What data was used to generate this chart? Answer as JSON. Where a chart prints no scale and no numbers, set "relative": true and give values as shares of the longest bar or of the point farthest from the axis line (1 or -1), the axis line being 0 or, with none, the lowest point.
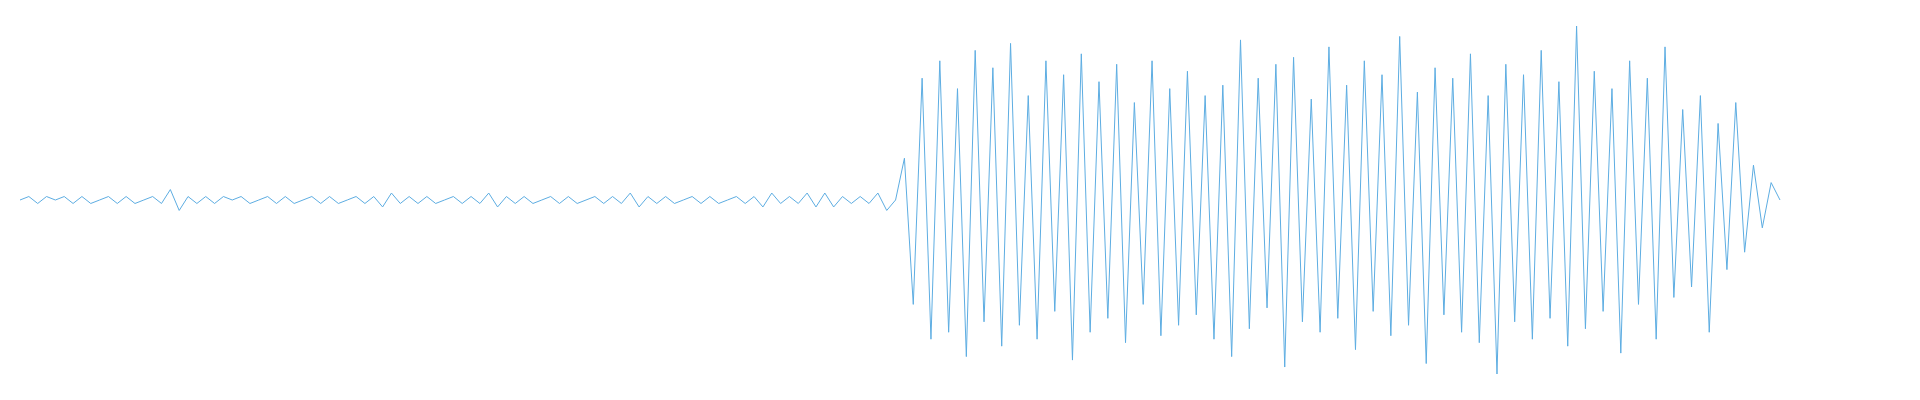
{
  "chart_data": {
    "type": "line",
    "relative": true,
    "categories": [
      null,
      null,
      null,
      null,
      null,
      null,
      null,
      null,
      null,
      null,
      null,
      null,
      null,
      null,
      null,
      null,
      null,
      null,
      null,
      null,
      null,
      null,
      null,
      null,
      null,
      null,
      null,
      null,
      null,
      null,
      null,
      null,
      null,
      null,
      null,
      null,
      null,
      null,
      null,
      null,
      null,
      null,
      null,
      null,
      null,
      null,
      null,
      null,
      null,
      null,
      null,
      null,
      null,
      null,
      null,
      null,
      null,
      null,
      null,
      null,
      null,
      null,
      null,
      null,
      null,
      null,
      null,
      null,
      null,
      null,
      null,
      null,
      null,
      null,
      null,
      null,
      null,
      null,
      null,
      null,
      null,
      null,
      null,
      null,
      null,
      null,
      null,
      null,
      null,
      null,
      null,
      null,
      null,
      null,
      null,
      null,
      null,
      null,
      null,
      null,
      null,
      null,
      null,
      null,
      null,
      null,
      null,
      null,
      null,
      null,
      null,
      null,
      null,
      null,
      null,
      null,
      null,
      null,
      null,
      null,
      null,
      null,
      null,
      null,
      null,
      null,
      null,
      null,
      null,
      null,
      null,
      null,
      null,
      null,
      null,
      null,
      null,
      null,
      null,
      null,
      null,
      null,
      null,
      null,
      null,
      null,
      null,
      null,
      null,
      null,
      null,
      null,
      null,
      null,
      null,
      null,
      null,
      null,
      null,
      null,
      null,
      null,
      null,
      null,
      null,
      null,
      null,
      null,
      null,
      null,
      null,
      null,
      null,
      null,
      null,
      null,
      null,
      null,
      null,
      null,
      null,
      null,
      null,
      null,
      null,
      null,
      null,
      null,
      null,
      null,
      null,
      null,
      null,
      null,
      null,
      null,
      null,
      null,
      null,
      null
    ],
    "series": [
      {
        "color": "#5dade2",
        "values": [
          0.5,
          0.51,
          0.49,
          0.51,
          0.5,
          0.51,
          0.49,
          0.51,
          0.49,
          0.5,
          0.51,
          0.49,
          0.51,
          0.49,
          0.5,
          0.51,
          0.49,
          0.53,
          0.47,
          0.51,
          0.49,
          0.51,
          0.49,
          0.51,
          0.5,
          0.51,
          0.49,
          0.5,
          0.51,
          0.49,
          0.51,
          0.49,
          0.5,
          0.51,
          0.49,
          0.51,
          0.49,
          0.5,
          0.51,
          0.49,
          0.51,
          0.48,
          0.52,
          0.49,
          0.51,
          0.49,
          0.51,
          0.49,
          0.5,
          0.51,
          0.49,
          0.51,
          0.49,
          0.52,
          0.48,
          0.51,
          0.49,
          0.51,
          0.49,
          0.5,
          0.51,
          0.49,
          0.51,
          0.49,
          0.5,
          0.51,
          0.49,
          0.51,
          0.49,
          0.52,
          0.48,
          0.51,
          0.49,
          0.51,
          0.49,
          0.5,
          0.51,
          0.49,
          0.51,
          0.49,
          0.5,
          0.51,
          0.49,
          0.51,
          0.48,
          0.52,
          0.49,
          0.51,
          0.49,
          0.52,
          0.48,
          0.52,
          0.48,
          0.51,
          0.49,
          0.51,
          0.49,
          0.52,
          0.47,
          0.5,
          0.62,
          0.2,
          0.85,
          0.1,
          0.9,
          0.12,
          0.82,
          0.05,
          0.93,
          0.15,
          0.88,
          0.08,
          0.95,
          0.14,
          0.8,
          0.1,
          0.9,
          0.18,
          0.86,
          0.04,
          0.92,
          0.12,
          0.84,
          0.16,
          0.89,
          0.09,
          0.78,
          0.2,
          0.9,
          0.11,
          0.82,
          0.14,
          0.87,
          0.17,
          0.8,
          0.1,
          0.83,
          0.05,
          0.96,
          0.13,
          0.85,
          0.19,
          0.89,
          0.02,
          0.91,
          0.15,
          0.79,
          0.12,
          0.94,
          0.16,
          0.83,
          0.07,
          0.9,
          0.18,
          0.86,
          0.11,
          0.97,
          0.14,
          0.81,
          0.03,
          0.88,
          0.17,
          0.85,
          0.12,
          0.92,
          0.09,
          0.8,
          0.0,
          0.89,
          0.15,
          0.86,
          0.1,
          0.93,
          0.16,
          0.84,
          0.08,
          1.0,
          0.13,
          0.87,
          0.18,
          0.82,
          0.06,
          0.9,
          0.2,
          0.85,
          0.1,
          0.94,
          0.22,
          0.76,
          0.25,
          0.8,
          0.12,
          0.72,
          0.3,
          0.78,
          0.35,
          0.6,
          0.42,
          0.55,
          0.5
        ]
      }
    ]
  }
}
